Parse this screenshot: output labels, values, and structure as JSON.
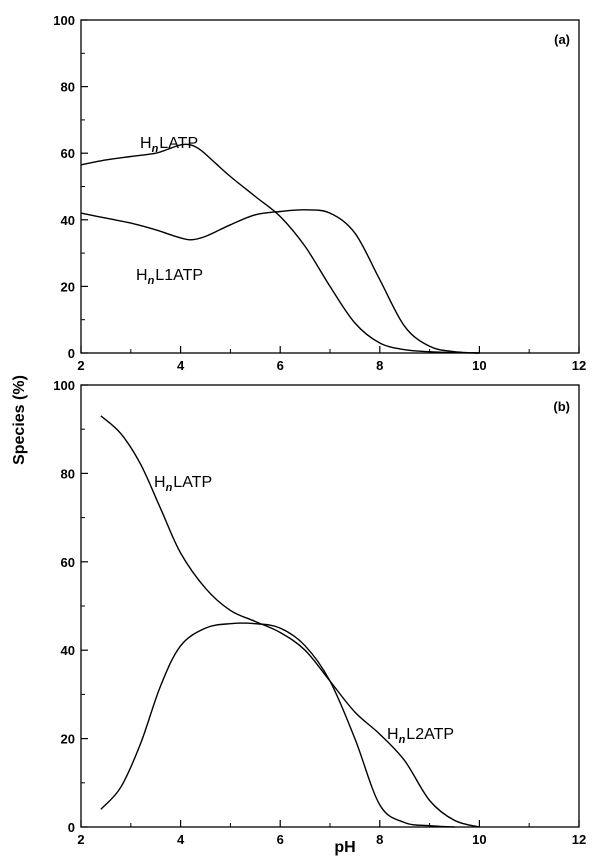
{
  "figure": {
    "ylabel": "Species (%)",
    "xlabel": "pH"
  },
  "chart_data": [
    {
      "type": "line",
      "panel_label": "(a)",
      "xlim": [
        2,
        12
      ],
      "ylim": [
        0,
        100
      ],
      "x_ticks": [
        2,
        4,
        6,
        8,
        10,
        12
      ],
      "y_ticks": [
        0,
        20,
        40,
        60,
        80,
        100
      ],
      "grid": false,
      "series": [
        {
          "label_parts": [
            "H",
            "n",
            "LATP"
          ],
          "x": [
            2.0,
            2.5,
            3.0,
            3.5,
            3.8,
            4.0,
            4.2,
            4.4,
            4.7,
            5.0,
            5.5,
            6.0,
            6.5,
            7.0,
            7.5,
            8.0,
            8.5,
            9.0,
            9.5,
            10.0
          ],
          "y": [
            56.5,
            58,
            59,
            60,
            61.5,
            62.5,
            62.5,
            61,
            57,
            53,
            47,
            41,
            32,
            20,
            9,
            3,
            1,
            0.4,
            0.1,
            0
          ]
        },
        {
          "label_parts": [
            "H",
            "n",
            "L1ATP"
          ],
          "x": [
            2.0,
            2.5,
            3.0,
            3.5,
            3.9,
            4.2,
            4.5,
            5.0,
            5.5,
            6.0,
            6.5,
            7.0,
            7.5,
            8.0,
            8.5,
            9.0,
            9.5,
            10.0
          ],
          "y": [
            42,
            40.5,
            39,
            37,
            35,
            34,
            35,
            38.5,
            41.5,
            42.5,
            43,
            42,
            36,
            22,
            8,
            2,
            0.4,
            0
          ]
        }
      ]
    },
    {
      "type": "line",
      "panel_label": "(b)",
      "xlim": [
        2,
        12
      ],
      "ylim": [
        0,
        100
      ],
      "x_ticks": [
        2,
        4,
        6,
        8,
        10,
        12
      ],
      "y_ticks": [
        0,
        20,
        40,
        60,
        80,
        100
      ],
      "grid": false,
      "series": [
        {
          "label_parts": [
            "H",
            "n",
            "LATP"
          ],
          "x": [
            2.4,
            2.8,
            3.2,
            3.6,
            4.0,
            4.5,
            5.0,
            5.5,
            6.0,
            6.5,
            7.0,
            7.5,
            8.0,
            8.5,
            9.0,
            9.5,
            10.0
          ],
          "y": [
            93,
            89,
            82,
            72,
            62,
            54,
            49,
            46.5,
            44,
            40,
            33,
            26,
            21,
            15,
            6,
            1.5,
            0
          ]
        },
        {
          "label_parts": [
            "H",
            "n",
            "L2ATP"
          ],
          "x": [
            2.4,
            2.8,
            3.2,
            3.6,
            4.0,
            4.5,
            5.0,
            5.5,
            6.0,
            6.5,
            7.0,
            7.5,
            8.0,
            8.5,
            9.0,
            9.5
          ],
          "y": [
            4,
            9,
            19,
            32,
            41,
            45,
            46,
            46,
            45,
            41,
            33,
            20,
            5,
            1,
            0.3,
            0
          ]
        }
      ]
    }
  ]
}
